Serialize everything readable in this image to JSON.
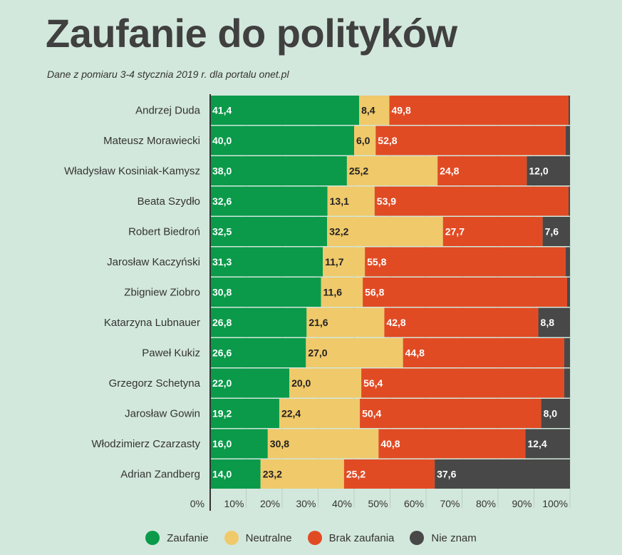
{
  "title": "Zaufanie do polityków",
  "subtitle": "Dane z pomiaru 3-4 stycznia 2019 r. dla portalu onet.pl",
  "chart_data": {
    "type": "bar",
    "orientation": "horizontal",
    "stacked": true,
    "title": "Zaufanie do polityków",
    "categories": [
      "Andrzej Duda",
      "Mateusz Morawiecki",
      "Władysław Kosiniak-Kamysz",
      "Beata Szydło",
      "Robert Biedroń",
      "Jarosław Kaczyński",
      "Zbigniew Ziobro",
      "Katarzyna Lubnauer",
      "Paweł Kukiz",
      "Grzegorz Schetyna",
      "Jarosław Gowin",
      "Włodzimierz Czarzasty",
      "Adrian Zandberg"
    ],
    "series": [
      {
        "name": "Zaufanie",
        "color": "#0a9a4a",
        "values": [
          41.4,
          40.0,
          38.0,
          32.6,
          32.5,
          31.3,
          30.8,
          26.8,
          26.6,
          22.0,
          19.2,
          16.0,
          14.0
        ]
      },
      {
        "name": "Neutralne",
        "color": "#f0c96a",
        "values": [
          8.4,
          6.0,
          25.2,
          13.1,
          32.2,
          11.7,
          11.6,
          21.6,
          27.0,
          20.0,
          22.4,
          30.8,
          23.2
        ]
      },
      {
        "name": "Brak zaufania",
        "color": "#e14b24",
        "values": [
          49.8,
          52.8,
          24.8,
          53.9,
          27.7,
          55.8,
          56.8,
          42.8,
          44.8,
          56.4,
          50.4,
          40.8,
          25.2
        ]
      },
      {
        "name": "Nie znam",
        "color": "#484848",
        "values": [
          0.4,
          1.2,
          12.0,
          0.4,
          7.6,
          1.2,
          0.8,
          8.8,
          1.6,
          1.6,
          8.0,
          12.4,
          37.6
        ]
      }
    ],
    "value_labels": [
      [
        "41,4",
        "8,4",
        "49,8",
        ""
      ],
      [
        "40,0",
        "6,0",
        "52,8",
        ""
      ],
      [
        "38,0",
        "25,2",
        "24,8",
        "12,0"
      ],
      [
        "32,6",
        "13,1",
        "53,9",
        ""
      ],
      [
        "32,5",
        "32,2",
        "27,7",
        "7,6"
      ],
      [
        "31,3",
        "11,7",
        "55,8",
        ""
      ],
      [
        "30,8",
        "11,6",
        "56,8",
        ""
      ],
      [
        "26,8",
        "21,6",
        "42,8",
        "8,8"
      ],
      [
        "26,6",
        "27,0",
        "44,8",
        ""
      ],
      [
        "22,0",
        "20,0",
        "56,4",
        ""
      ],
      [
        "19,2",
        "22,4",
        "50,4",
        "8,0"
      ],
      [
        "16,0",
        "30,8",
        "40,8",
        "12,4"
      ],
      [
        "14,0",
        "23,2",
        "25,2",
        "37,6"
      ]
    ],
    "label_colors": [
      "#ffffff",
      "#222222",
      "#ffffff",
      "#ffffff"
    ],
    "xlim": [
      0,
      100
    ],
    "x_ticks": [
      "0%",
      "10%",
      "20%",
      "30%",
      "40%",
      "50%",
      "60%",
      "70%",
      "80%",
      "90%",
      "100%"
    ],
    "legend_position": "bottom-center",
    "xlabel": "",
    "ylabel": ""
  }
}
